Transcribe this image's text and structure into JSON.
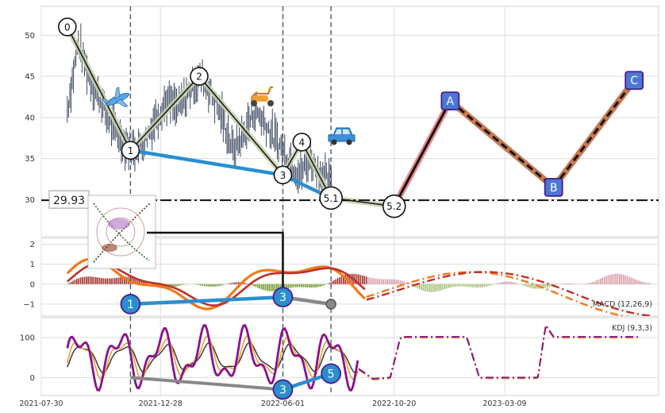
{
  "chart_data": [
    {
      "type": "line",
      "panel": "price",
      "y_ticks": [
        30,
        35,
        40,
        45,
        50
      ],
      "ylim": [
        25.5,
        53.5
      ],
      "x_ticks": [
        "2021-07-30",
        "2021-12-28",
        "2022-06-01",
        "2022-10-20",
        "2023-03-09"
      ],
      "xlim": [
        "2021-07-30",
        "2023-09-20"
      ],
      "grid": true,
      "series": [
        {
          "kind": "candles",
          "x": [
            "2021-09-01",
            "2021-09-15",
            "2021-09-29",
            "2021-10-13",
            "2021-10-27",
            "2021-11-10",
            "2021-11-24",
            "2021-12-08",
            "2021-12-22",
            "2022-01-05",
            "2022-01-19",
            "2022-02-02",
            "2022-02-16",
            "2022-03-02",
            "2022-03-16",
            "2022-03-30",
            "2022-04-13",
            "2022-04-27",
            "2022-05-11",
            "2022-05-25",
            "2022-06-08",
            "2022-06-22",
            "2022-07-06",
            "2022-07-20",
            "2022-08-03"
          ],
          "y": [
            41,
            49,
            45,
            42,
            39,
            37,
            36,
            37,
            40,
            42,
            41,
            43,
            45,
            43,
            40,
            36,
            38,
            41,
            39,
            37,
            35,
            33,
            35,
            33,
            32
          ]
        }
      ],
      "wave_points": [
        {
          "label": "0",
          "x": "2021-09-01",
          "y": 51
        },
        {
          "label": "1",
          "x": "2021-11-20",
          "y": 36
        },
        {
          "label": "2",
          "x": "2022-02-15",
          "y": 45
        },
        {
          "label": "3",
          "x": "2022-06-01",
          "y": 33
        },
        {
          "label": "4",
          "x": "2022-06-25",
          "y": 37
        },
        {
          "label": "5.1",
          "x": "2022-08-01",
          "y": 30.2
        },
        {
          "label": "5.2",
          "x": "2022-10-20",
          "y": 29.2
        }
      ],
      "projection_points": [
        {
          "label": "A",
          "x": "2022-12-30",
          "y": 42
        },
        {
          "label": "B",
          "x": "2023-05-10",
          "y": 31.5
        },
        {
          "label": "C",
          "x": "2023-08-20",
          "y": 44.5
        }
      ],
      "hline": {
        "value": 29.93,
        "label": "29.93"
      },
      "vlines": [
        "2021-11-20",
        "2022-06-01",
        "2022-08-01"
      ],
      "icons": [
        "airplane-icon",
        "scooter-icon",
        "car-icon",
        "thumbnail-icon"
      ]
    },
    {
      "type": "line",
      "panel": "macd",
      "label": "MACD (12,26,9)",
      "y_ticks": [
        -1,
        0,
        1,
        2
      ],
      "ylim": [
        -1.6,
        2.3
      ],
      "grid": true,
      "divergence_points": [
        {
          "label": "1",
          "x": "2021-11-20",
          "y": -1.0
        },
        {
          "label": "3",
          "x": "2022-06-01",
          "y": -0.65
        },
        {
          "label": "",
          "x": "2022-08-01",
          "y": -1.0
        }
      ]
    },
    {
      "type": "line",
      "panel": "kdj",
      "label": "KDJ (9,3,3)",
      "y_ticks": [
        0,
        100
      ],
      "ylim": [
        -45,
        150
      ],
      "grid": true,
      "divergence_points": [
        {
          "label": "3",
          "x": "2022-06-01",
          "y": -30
        },
        {
          "label": "5",
          "x": "2022-08-01",
          "y": 10
        }
      ]
    }
  ]
}
